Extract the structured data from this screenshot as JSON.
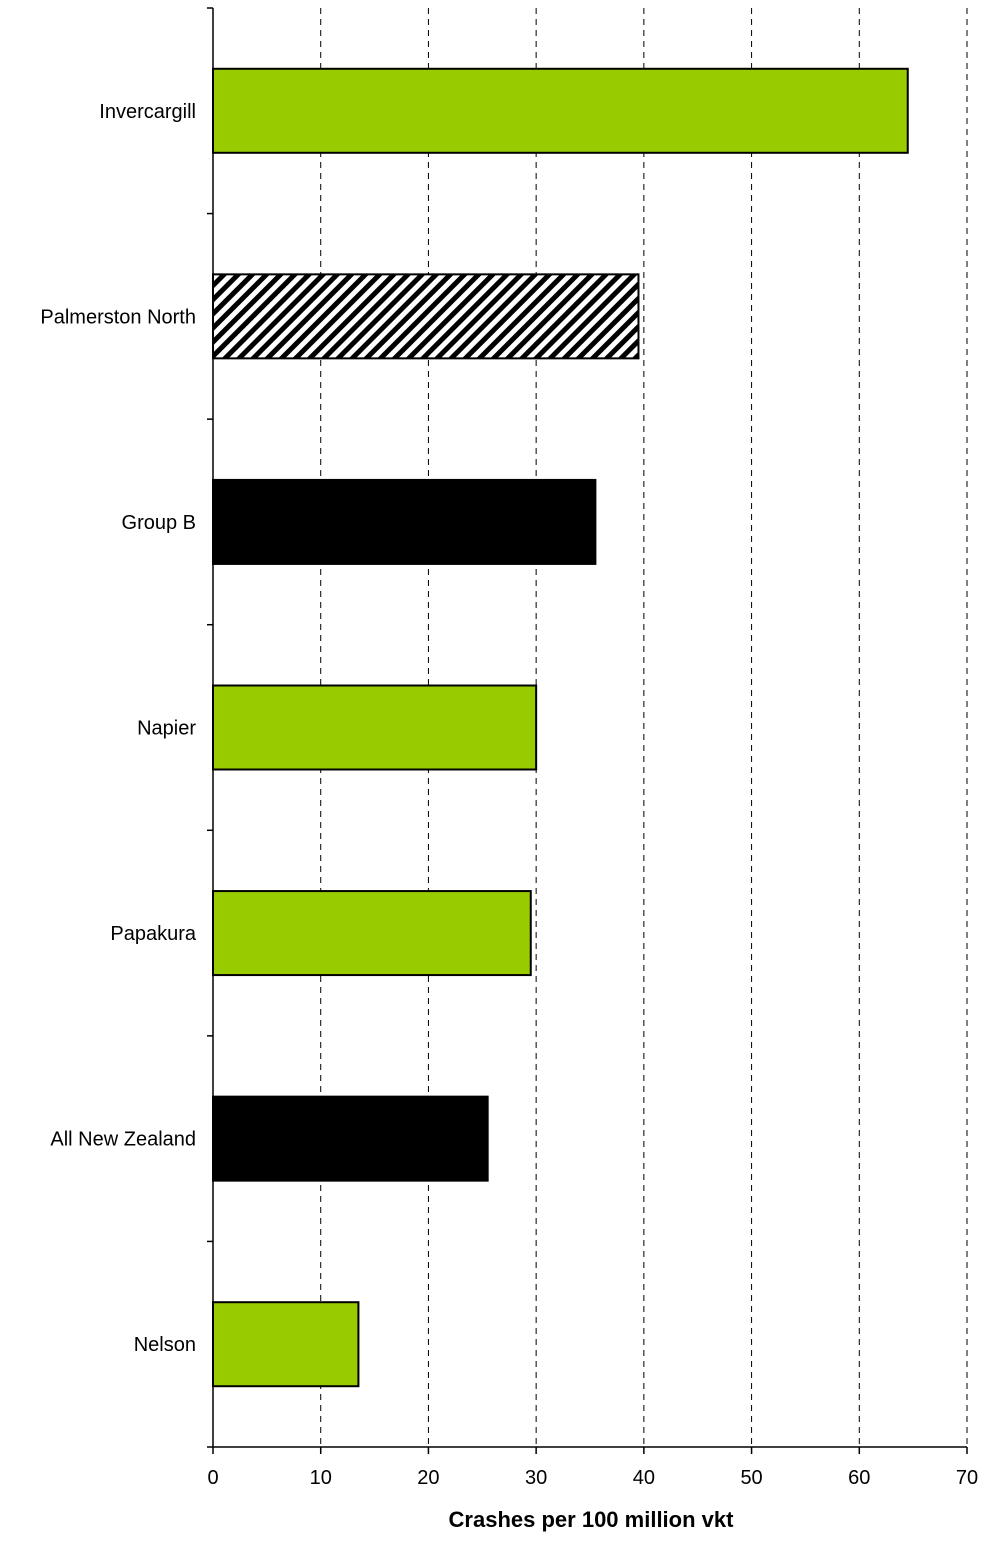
{
  "chart_data": {
    "type": "bar",
    "orientation": "horizontal",
    "title": "",
    "xlabel": "Crashes per 100 million vkt",
    "ylabel": "",
    "xlim": [
      0,
      70
    ],
    "xticks": [
      0,
      10,
      20,
      30,
      40,
      50,
      60,
      70
    ],
    "grid": "vertical dashed",
    "categories": [
      "Invercargill",
      "Palmerston North",
      "Group B",
      "Napier",
      "Papakura",
      "All New Zealand",
      "Nelson"
    ],
    "values": [
      64.5,
      39.5,
      35.5,
      30.0,
      29.5,
      25.5,
      13.5
    ],
    "styles": [
      "green",
      "hatched",
      "black",
      "green",
      "green",
      "black",
      "green"
    ],
    "colors": {
      "green": "#99cc00",
      "black": "#000000",
      "hatch_fg": "#000000",
      "hatch_bg": "#ffffff",
      "grid": "#000000",
      "axis": "#000000"
    }
  }
}
